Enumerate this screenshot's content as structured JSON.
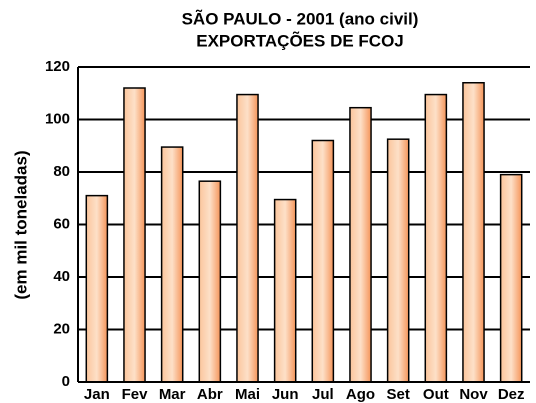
{
  "chart_data": {
    "type": "bar",
    "title": "SÃO PAULO - 2001 (ano civil)",
    "subtitle": "EXPORTAÇÕES DE FCOJ",
    "y_label": "(em mil toneladas)",
    "categories": [
      "Jan",
      "Fev",
      "Mar",
      "Abr",
      "Mai",
      "Jun",
      "Jul",
      "Ago",
      "Set",
      "Out",
      "Nov",
      "Dez"
    ],
    "values": [
      71,
      112,
      89.5,
      76.5,
      109.5,
      69.5,
      92,
      104.5,
      92.5,
      109.5,
      114,
      79
    ],
    "color": "#f9a56a",
    "ylim": [
      0,
      120
    ],
    "yticks": [
      0,
      20,
      40,
      60,
      80,
      100,
      120
    ],
    "grid": true
  }
}
